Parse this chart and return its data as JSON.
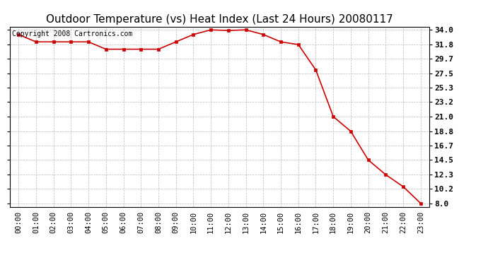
{
  "title": "Outdoor Temperature (vs) Heat Index (Last 24 Hours) 20080117",
  "copyright_text": "Copyright 2008 Cartronics.com",
  "x_labels": [
    "00:00",
    "01:00",
    "02:00",
    "03:00",
    "04:00",
    "05:00",
    "06:00",
    "07:00",
    "08:00",
    "09:00",
    "10:00",
    "11:00",
    "12:00",
    "13:00",
    "14:00",
    "15:00",
    "16:00",
    "17:00",
    "18:00",
    "19:00",
    "20:00",
    "21:00",
    "22:00",
    "23:00"
  ],
  "y_values": [
    33.3,
    32.2,
    32.2,
    32.2,
    32.2,
    31.1,
    31.1,
    31.1,
    31.1,
    32.2,
    33.3,
    34.0,
    33.9,
    34.0,
    33.3,
    32.2,
    31.8,
    28.0,
    21.0,
    18.8,
    14.5,
    12.3,
    10.5,
    8.0
  ],
  "yticks": [
    8.0,
    10.2,
    12.3,
    14.5,
    16.7,
    18.8,
    21.0,
    23.2,
    25.3,
    27.5,
    29.7,
    31.8,
    34.0
  ],
  "ylim": [
    7.5,
    34.5
  ],
  "xlim": [
    -0.5,
    23.5
  ],
  "line_color": "#cc0000",
  "marker_color": "#cc0000",
  "bg_color": "#ffffff",
  "plot_bg_color": "#ffffff",
  "grid_color": "#bbbbbb",
  "title_fontsize": 11,
  "copyright_fontsize": 7,
  "tick_fontsize": 7.5,
  "ytick_fontsize": 8
}
